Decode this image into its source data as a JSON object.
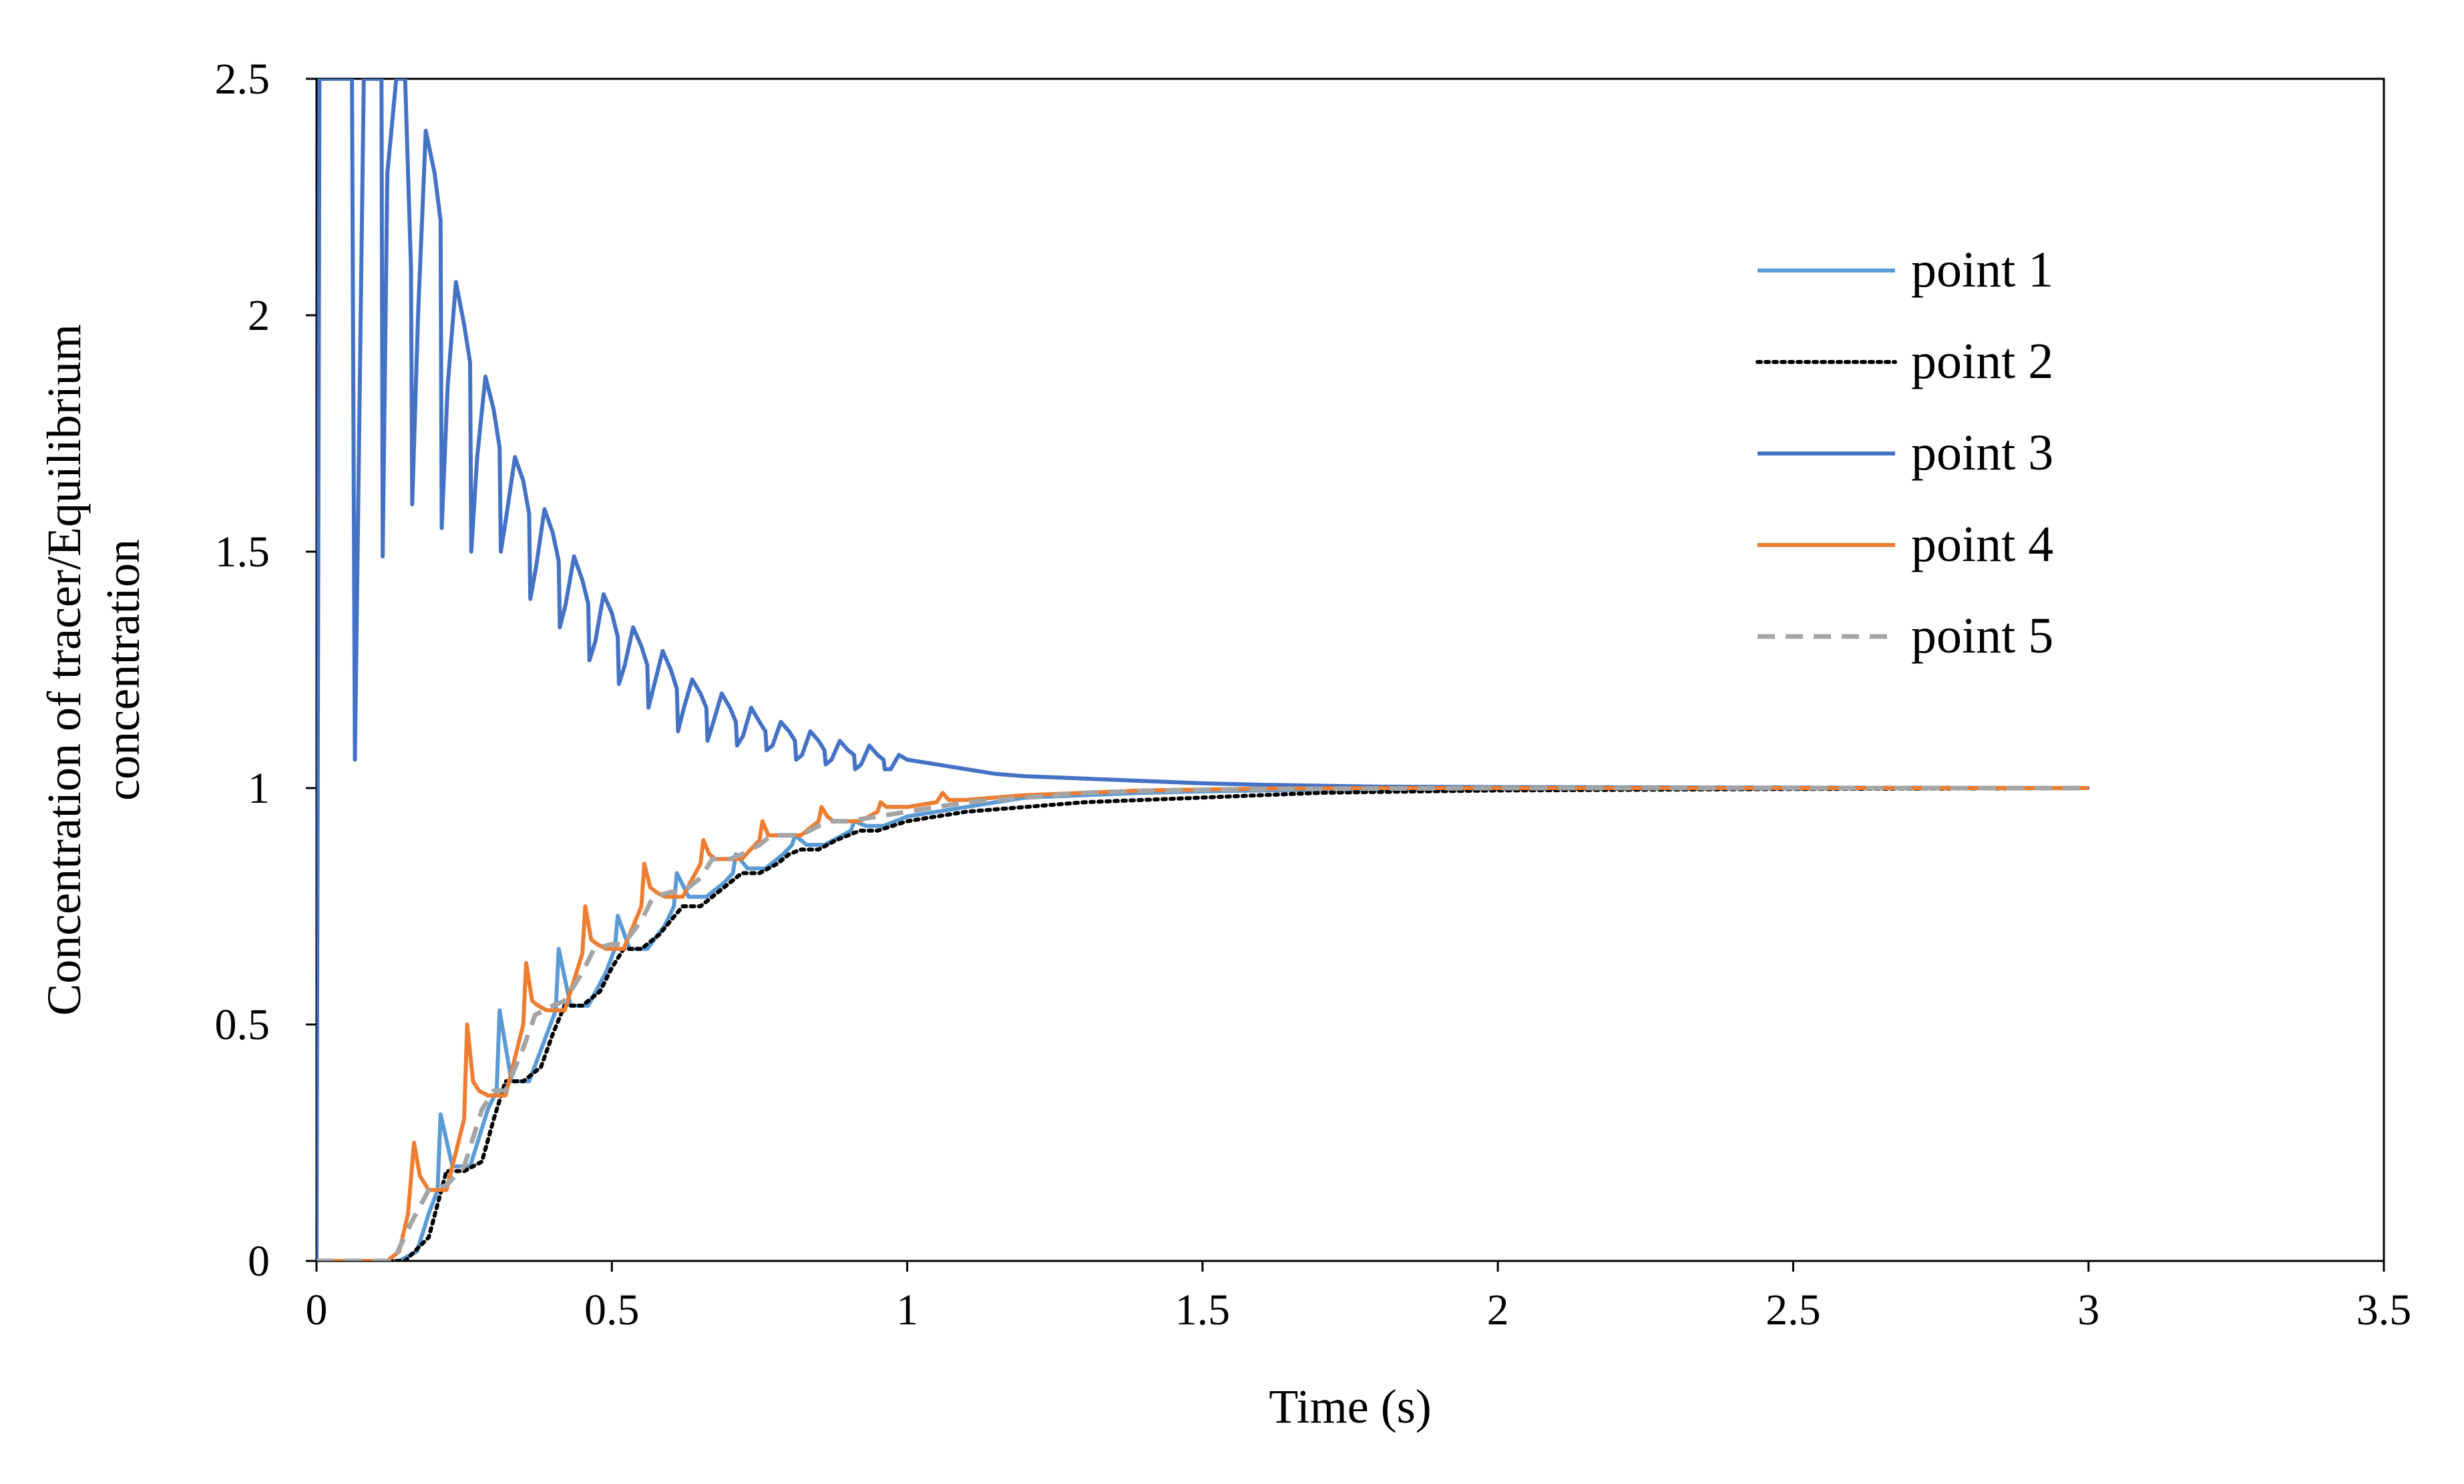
{
  "chart_data": {
    "type": "line",
    "title": "",
    "xlabel": "Time (s)",
    "ylabel_lines": [
      "Concentration of tracer/Equilibrium",
      "concentration"
    ],
    "xlim": [
      0,
      3.5
    ],
    "ylim": [
      0,
      2.5
    ],
    "x_ticks": [
      "0",
      "0.5",
      "1",
      "1.5",
      "2",
      "2.5",
      "3",
      "3.5"
    ],
    "y_ticks": [
      "0",
      "0.5",
      "1",
      "1.5",
      "2",
      "2.5"
    ],
    "grid": false,
    "legend_position": "right",
    "series": [
      {
        "name": "point 1",
        "color": "#5B9BD5",
        "style": "solid",
        "x": [
          0,
          0.14,
          0.17,
          0.19,
          0.205,
          0.21,
          0.23,
          0.26,
          0.29,
          0.305,
          0.31,
          0.33,
          0.36,
          0.39,
          0.405,
          0.41,
          0.43,
          0.46,
          0.49,
          0.505,
          0.51,
          0.53,
          0.56,
          0.59,
          0.605,
          0.61,
          0.63,
          0.66,
          0.69,
          0.705,
          0.71,
          0.73,
          0.76,
          0.79,
          0.805,
          0.81,
          0.83,
          0.86,
          0.89,
          0.905,
          0.91,
          0.93,
          0.96,
          1.0,
          1.05,
          1.1,
          1.15,
          1.2,
          1.3,
          1.4,
          1.5,
          1.6,
          1.8,
          2.0,
          2.5,
          3.0
        ],
        "y": [
          0,
          0,
          0.02,
          0.1,
          0.15,
          0.31,
          0.2,
          0.2,
          0.32,
          0.36,
          0.53,
          0.38,
          0.38,
          0.48,
          0.53,
          0.66,
          0.54,
          0.54,
          0.61,
          0.66,
          0.73,
          0.66,
          0.66,
          0.71,
          0.75,
          0.82,
          0.77,
          0.77,
          0.8,
          0.82,
          0.86,
          0.83,
          0.83,
          0.86,
          0.88,
          0.9,
          0.88,
          0.88,
          0.9,
          0.91,
          0.93,
          0.92,
          0.92,
          0.94,
          0.95,
          0.96,
          0.97,
          0.98,
          0.985,
          0.99,
          0.993,
          0.995,
          0.997,
          0.998,
          0.999,
          1.0
        ]
      },
      {
        "name": "point 2",
        "color": "#000000",
        "style": "dotted",
        "x": [
          0,
          0.15,
          0.19,
          0.22,
          0.25,
          0.28,
          0.3,
          0.32,
          0.35,
          0.38,
          0.4,
          0.42,
          0.45,
          0.48,
          0.5,
          0.52,
          0.55,
          0.58,
          0.6,
          0.62,
          0.65,
          0.68,
          0.7,
          0.72,
          0.75,
          0.78,
          0.8,
          0.82,
          0.85,
          0.88,
          0.9,
          0.92,
          0.95,
          1.0,
          1.05,
          1.1,
          1.2,
          1.3,
          1.4,
          1.5,
          1.6,
          1.7,
          1.8,
          2.0,
          2.5,
          3.0
        ],
        "y": [
          0,
          0,
          0.05,
          0.19,
          0.19,
          0.21,
          0.3,
          0.38,
          0.38,
          0.41,
          0.48,
          0.54,
          0.54,
          0.57,
          0.62,
          0.66,
          0.66,
          0.69,
          0.72,
          0.75,
          0.75,
          0.78,
          0.8,
          0.82,
          0.82,
          0.84,
          0.86,
          0.87,
          0.87,
          0.89,
          0.9,
          0.91,
          0.91,
          0.93,
          0.94,
          0.95,
          0.96,
          0.97,
          0.975,
          0.98,
          0.985,
          0.99,
          0.992,
          0.995,
          0.998,
          1.0
        ]
      },
      {
        "name": "point 3",
        "color": "#4472C4",
        "style": "solid",
        "x": [
          0,
          0.005,
          0.012,
          0.03,
          0.06,
          0.065,
          0.08,
          0.095,
          0.11,
          0.112,
          0.12,
          0.135,
          0.15,
          0.16,
          0.162,
          0.172,
          0.185,
          0.2,
          0.21,
          0.212,
          0.222,
          0.236,
          0.25,
          0.26,
          0.262,
          0.272,
          0.286,
          0.3,
          0.31,
          0.312,
          0.322,
          0.336,
          0.35,
          0.36,
          0.362,
          0.372,
          0.386,
          0.4,
          0.41,
          0.412,
          0.422,
          0.436,
          0.45,
          0.46,
          0.462,
          0.472,
          0.486,
          0.5,
          0.51,
          0.512,
          0.522,
          0.536,
          0.55,
          0.56,
          0.562,
          0.572,
          0.586,
          0.6,
          0.61,
          0.612,
          0.622,
          0.636,
          0.65,
          0.66,
          0.662,
          0.672,
          0.686,
          0.7,
          0.71,
          0.712,
          0.722,
          0.736,
          0.75,
          0.76,
          0.762,
          0.772,
          0.786,
          0.8,
          0.81,
          0.812,
          0.822,
          0.836,
          0.85,
          0.86,
          0.862,
          0.872,
          0.886,
          0.9,
          0.91,
          0.912,
          0.922,
          0.936,
          0.95,
          0.96,
          0.962,
          0.972,
          0.986,
          1.0,
          1.05,
          1.1,
          1.15,
          1.2,
          1.3,
          1.4,
          1.5,
          1.6,
          1.7,
          1.8,
          2.0,
          2.5,
          3.0
        ],
        "y": [
          0,
          2.5,
          2.5,
          2.5,
          2.5,
          1.06,
          2.5,
          2.5,
          2.5,
          1.49,
          2.3,
          2.5,
          2.5,
          2.1,
          1.6,
          2.0,
          2.39,
          2.3,
          2.2,
          1.55,
          1.85,
          2.07,
          1.98,
          1.9,
          1.5,
          1.7,
          1.87,
          1.8,
          1.72,
          1.5,
          1.58,
          1.7,
          1.65,
          1.58,
          1.4,
          1.47,
          1.59,
          1.54,
          1.48,
          1.34,
          1.39,
          1.49,
          1.44,
          1.39,
          1.27,
          1.31,
          1.41,
          1.37,
          1.32,
          1.22,
          1.26,
          1.34,
          1.3,
          1.26,
          1.17,
          1.22,
          1.29,
          1.25,
          1.21,
          1.12,
          1.17,
          1.23,
          1.2,
          1.17,
          1.1,
          1.14,
          1.2,
          1.17,
          1.14,
          1.09,
          1.11,
          1.17,
          1.14,
          1.12,
          1.08,
          1.09,
          1.14,
          1.12,
          1.1,
          1.06,
          1.07,
          1.12,
          1.1,
          1.08,
          1.05,
          1.06,
          1.1,
          1.08,
          1.07,
          1.04,
          1.05,
          1.09,
          1.07,
          1.06,
          1.04,
          1.04,
          1.07,
          1.06,
          1.05,
          1.04,
          1.03,
          1.025,
          1.02,
          1.015,
          1.01,
          1.007,
          1.005,
          1.003,
          1.002,
          1.001,
          1.0
        ]
      },
      {
        "name": "point 4",
        "color": "#ED7D31",
        "style": "solid",
        "x": [
          0,
          0.12,
          0.14,
          0.155,
          0.165,
          0.175,
          0.19,
          0.22,
          0.25,
          0.255,
          0.265,
          0.275,
          0.29,
          0.32,
          0.35,
          0.355,
          0.365,
          0.375,
          0.39,
          0.42,
          0.45,
          0.455,
          0.465,
          0.475,
          0.49,
          0.52,
          0.55,
          0.555,
          0.565,
          0.575,
          0.59,
          0.62,
          0.65,
          0.655,
          0.665,
          0.675,
          0.69,
          0.72,
          0.75,
          0.755,
          0.765,
          0.775,
          0.79,
          0.82,
          0.85,
          0.855,
          0.865,
          0.875,
          0.89,
          0.92,
          0.95,
          0.955,
          0.965,
          0.975,
          1.0,
          1.05,
          1.06,
          1.07,
          1.1,
          1.2,
          1.3,
          1.4,
          1.5,
          1.6,
          1.8,
          2.0,
          2.5,
          3.0
        ],
        "y": [
          0,
          0,
          0.02,
          0.1,
          0.25,
          0.18,
          0.15,
          0.15,
          0.3,
          0.5,
          0.38,
          0.36,
          0.35,
          0.35,
          0.5,
          0.63,
          0.55,
          0.54,
          0.53,
          0.53,
          0.65,
          0.75,
          0.68,
          0.67,
          0.66,
          0.66,
          0.75,
          0.84,
          0.79,
          0.78,
          0.77,
          0.77,
          0.84,
          0.89,
          0.86,
          0.85,
          0.85,
          0.85,
          0.89,
          0.93,
          0.9,
          0.9,
          0.9,
          0.9,
          0.93,
          0.96,
          0.94,
          0.93,
          0.93,
          0.93,
          0.95,
          0.97,
          0.96,
          0.96,
          0.96,
          0.97,
          0.99,
          0.975,
          0.975,
          0.985,
          0.99,
          0.995,
          0.997,
          0.999,
          1.0,
          1.0,
          1.0,
          1.0
        ]
      },
      {
        "name": "point 5",
        "color": "#A5A5A5",
        "style": "dashed",
        "x": [
          0,
          0.13,
          0.16,
          0.19,
          0.22,
          0.25,
          0.28,
          0.3,
          0.32,
          0.35,
          0.37,
          0.4,
          0.42,
          0.45,
          0.47,
          0.5,
          0.52,
          0.55,
          0.57,
          0.6,
          0.62,
          0.65,
          0.67,
          0.7,
          0.72,
          0.75,
          0.77,
          0.8,
          0.82,
          0.85,
          0.87,
          0.9,
          0.95,
          1.0,
          1.05,
          1.1,
          1.2,
          1.3,
          1.4,
          1.5,
          1.6,
          1.8,
          2.0,
          2.5,
          3.0
        ],
        "y": [
          0,
          0,
          0.08,
          0.15,
          0.16,
          0.2,
          0.32,
          0.36,
          0.36,
          0.45,
          0.52,
          0.54,
          0.55,
          0.61,
          0.66,
          0.67,
          0.67,
          0.72,
          0.77,
          0.78,
          0.78,
          0.81,
          0.85,
          0.85,
          0.86,
          0.88,
          0.9,
          0.9,
          0.9,
          0.92,
          0.93,
          0.93,
          0.94,
          0.95,
          0.96,
          0.97,
          0.98,
          0.99,
          0.994,
          0.996,
          0.998,
          0.999,
          1.0,
          1.0,
          1.0
        ]
      }
    ]
  }
}
